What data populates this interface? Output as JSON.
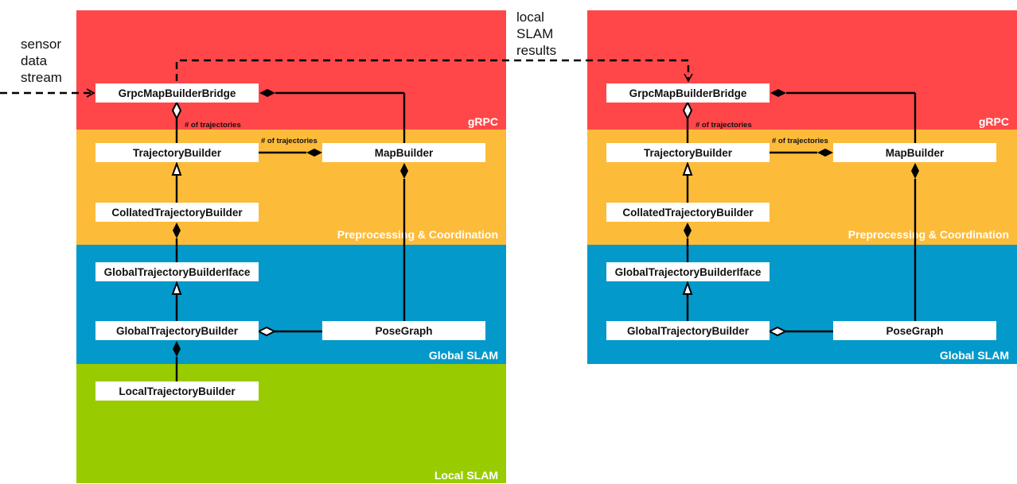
{
  "colors": {
    "grpc": "#ff4749",
    "preprocessing": "#fdbb3a",
    "global_slam": "#0399cb",
    "local_slam": "#99cc00",
    "node_bg": "#ffffff",
    "line": "#000000"
  },
  "annotations": {
    "sensor_stream": [
      "sensor",
      "data",
      "stream"
    ],
    "local_results": [
      "local",
      "SLAM",
      "results"
    ]
  },
  "left_stack": {
    "layers": {
      "grpc": "gRPC",
      "preprocessing": "Preprocessing & Coordination",
      "global_slam": "Global SLAM",
      "local_slam": "Local SLAM"
    },
    "nodes": {
      "grpc_bridge": "GrpcMapBuilderBridge",
      "trajectory_builder": "TrajectoryBuilder",
      "map_builder": "MapBuilder",
      "collated_trajectory_builder": "CollatedTrajectoryBuilder",
      "global_trajectory_builder_iface": "GlobalTrajectoryBuilderIface",
      "global_trajectory_builder": "GlobalTrajectoryBuilder",
      "pose_graph": "PoseGraph",
      "local_trajectory_builder": "LocalTrajectoryBuilder"
    },
    "edge_labels": {
      "bridge_trajectories": "# of trajectories",
      "map_trajectories": "# of trajectories"
    }
  },
  "right_stack": {
    "layers": {
      "grpc": "gRPC",
      "preprocessing": "Preprocessing & Coordination",
      "global_slam": "Global SLAM"
    },
    "nodes": {
      "grpc_bridge": "GrpcMapBuilderBridge",
      "trajectory_builder": "TrajectoryBuilder",
      "map_builder": "MapBuilder",
      "collated_trajectory_builder": "CollatedTrajectoryBuilder",
      "global_trajectory_builder_iface": "GlobalTrajectoryBuilderIface",
      "global_trajectory_builder": "GlobalTrajectoryBuilder",
      "pose_graph": "PoseGraph"
    },
    "edge_labels": {
      "bridge_trajectories": "# of trajectories",
      "map_trajectories": "# of trajectories"
    }
  }
}
